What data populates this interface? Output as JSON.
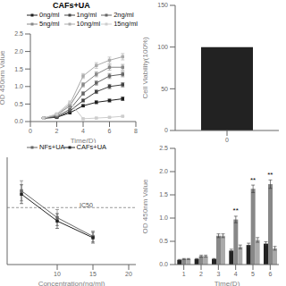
{
  "chart_data": [
    {
      "type": "line",
      "title": "CAFs+UA",
      "x_label": "Time(D)",
      "y_label": "OD 450nm Value",
      "x": [
        1,
        2,
        3,
        4,
        5,
        6,
        7
      ],
      "xlim": [
        0,
        8
      ],
      "xticks": [
        0,
        2,
        4,
        6,
        8
      ],
      "ylim": [
        0,
        2.5
      ],
      "yticks": [
        {
          "value": 0,
          "label": "0.0"
        },
        0.5,
        {
          "value": 1,
          "label": "1.0"
        },
        1.5,
        {
          "value": 2,
          "label": "2.0"
        },
        2.5
      ],
      "marker": "square",
      "legend": "top",
      "grid": false,
      "series": [
        {
          "name": "0ng/ml",
          "color": "#1e1e1e",
          "values": [
            0.1,
            0.12,
            0.25,
            0.45,
            0.55,
            0.6,
            0.65
          ],
          "errors": [
            0.01,
            0.01,
            0.02,
            0.03,
            0.04,
            0.04,
            0.05
          ]
        },
        {
          "name": "1ng/ml",
          "color": "#414141",
          "values": [
            0.1,
            0.12,
            0.3,
            0.6,
            0.85,
            1.0,
            1.05
          ],
          "errors": [
            0.01,
            0.01,
            0.02,
            0.04,
            0.05,
            0.06,
            0.06
          ]
        },
        {
          "name": "2ng/ml",
          "color": "#646464",
          "values": [
            0.1,
            0.15,
            0.35,
            0.8,
            1.1,
            1.3,
            1.35
          ],
          "errors": [
            0.01,
            0.02,
            0.03,
            0.05,
            0.06,
            0.07,
            0.07
          ]
        },
        {
          "name": "5ng/ml",
          "color": "#878787",
          "values": [
            0.1,
            0.18,
            0.45,
            1.05,
            1.35,
            1.55,
            1.55
          ],
          "errors": [
            0.01,
            0.02,
            0.03,
            0.06,
            0.07,
            0.08,
            0.08
          ]
        },
        {
          "name": "10ng/ml",
          "color": "#aaaaaa",
          "values": [
            0.1,
            0.2,
            0.5,
            1.3,
            1.6,
            1.75,
            1.85
          ],
          "errors": [
            0.01,
            0.02,
            0.04,
            0.07,
            0.08,
            0.09,
            0.09
          ]
        },
        {
          "name": "15ng/ml",
          "color": "#cdcdcd",
          "values": [
            0.1,
            0.22,
            0.55,
            0.08,
            0.1,
            0.12,
            0.15
          ],
          "errors": [
            0.01,
            0.02,
            0.04,
            0.01,
            0.01,
            0.01,
            0.01
          ]
        }
      ]
    },
    {
      "type": "bar",
      "y_label": "Cell Viability(100%)",
      "categories": [
        "0"
      ],
      "values": [
        100
      ],
      "color": "#222222",
      "ylim": [
        0,
        150
      ],
      "yticks": [
        0,
        50,
        100,
        150
      ],
      "grid": false
    },
    {
      "type": "line",
      "x_label": "Concentration(ng/ml)",
      "x": [
        5,
        10,
        15
      ],
      "xlim": [
        3,
        21
      ],
      "xticks": [
        10,
        15,
        20
      ],
      "ylim": [
        0.5,
        2.1
      ],
      "tick_labels": "x",
      "marker": "square",
      "legend": "top",
      "grid": false,
      "series": [
        {
          "name": "NFs+UA",
          "color": "#666666",
          "values": [
            1.6,
            1.2,
            0.92
          ],
          "errors": [
            0.15,
            0.12,
            0.08
          ]
        },
        {
          "name": "CAFs+UA",
          "color": "#222222",
          "values": [
            1.55,
            1.15,
            0.9
          ],
          "errors": [
            0.14,
            0.11,
            0.08
          ]
        }
      ],
      "reference_lines": [
        {
          "y": 1.35,
          "line_style": "dashed",
          "color": "#808080"
        }
      ],
      "annotations": [
        {
          "text": "IC50",
          "x": 13,
          "y": 1.38
        }
      ]
    },
    {
      "type": "bar",
      "x_label": "Time(D)",
      "y_label": "OD 450nm Value",
      "categories": [
        "1",
        "2",
        "3",
        "4",
        "5",
        "6"
      ],
      "ylim": [
        0,
        2.5
      ],
      "yticks": [
        {
          "value": 0,
          "label": "0.0"
        },
        0.5,
        {
          "value": 1,
          "label": "1.0"
        },
        1.5,
        {
          "value": 2,
          "label": "2.0"
        },
        2.5
      ],
      "grid": false,
      "series": [
        {
          "color": "#222222",
          "values": [
            0.1,
            0.12,
            0.12,
            0.3,
            0.42,
            0.45
          ],
          "errors": [
            0.01,
            0.01,
            0.01,
            0.03,
            0.04,
            0.04
          ]
        },
        {
          "color": "#888888",
          "values": [
            0.12,
            0.18,
            0.62,
            0.97,
            1.63,
            1.73
          ],
          "errors": [
            0.01,
            0.02,
            0.04,
            0.07,
            0.08,
            0.09
          ]
        },
        {
          "color": "#aaaaaa",
          "values": [
            0.12,
            0.18,
            0.62,
            0.38,
            0.53,
            0.35
          ],
          "errors": [
            0.01,
            0.02,
            0.04,
            0.04,
            0.05,
            0.04
          ]
        }
      ],
      "annotations": [
        {
          "text": "**",
          "x": "4",
          "y": 1.08
        },
        {
          "text": "**",
          "x": "5",
          "y": 1.74
        },
        {
          "text": "**",
          "x": "6",
          "y": 1.84
        }
      ]
    }
  ]
}
